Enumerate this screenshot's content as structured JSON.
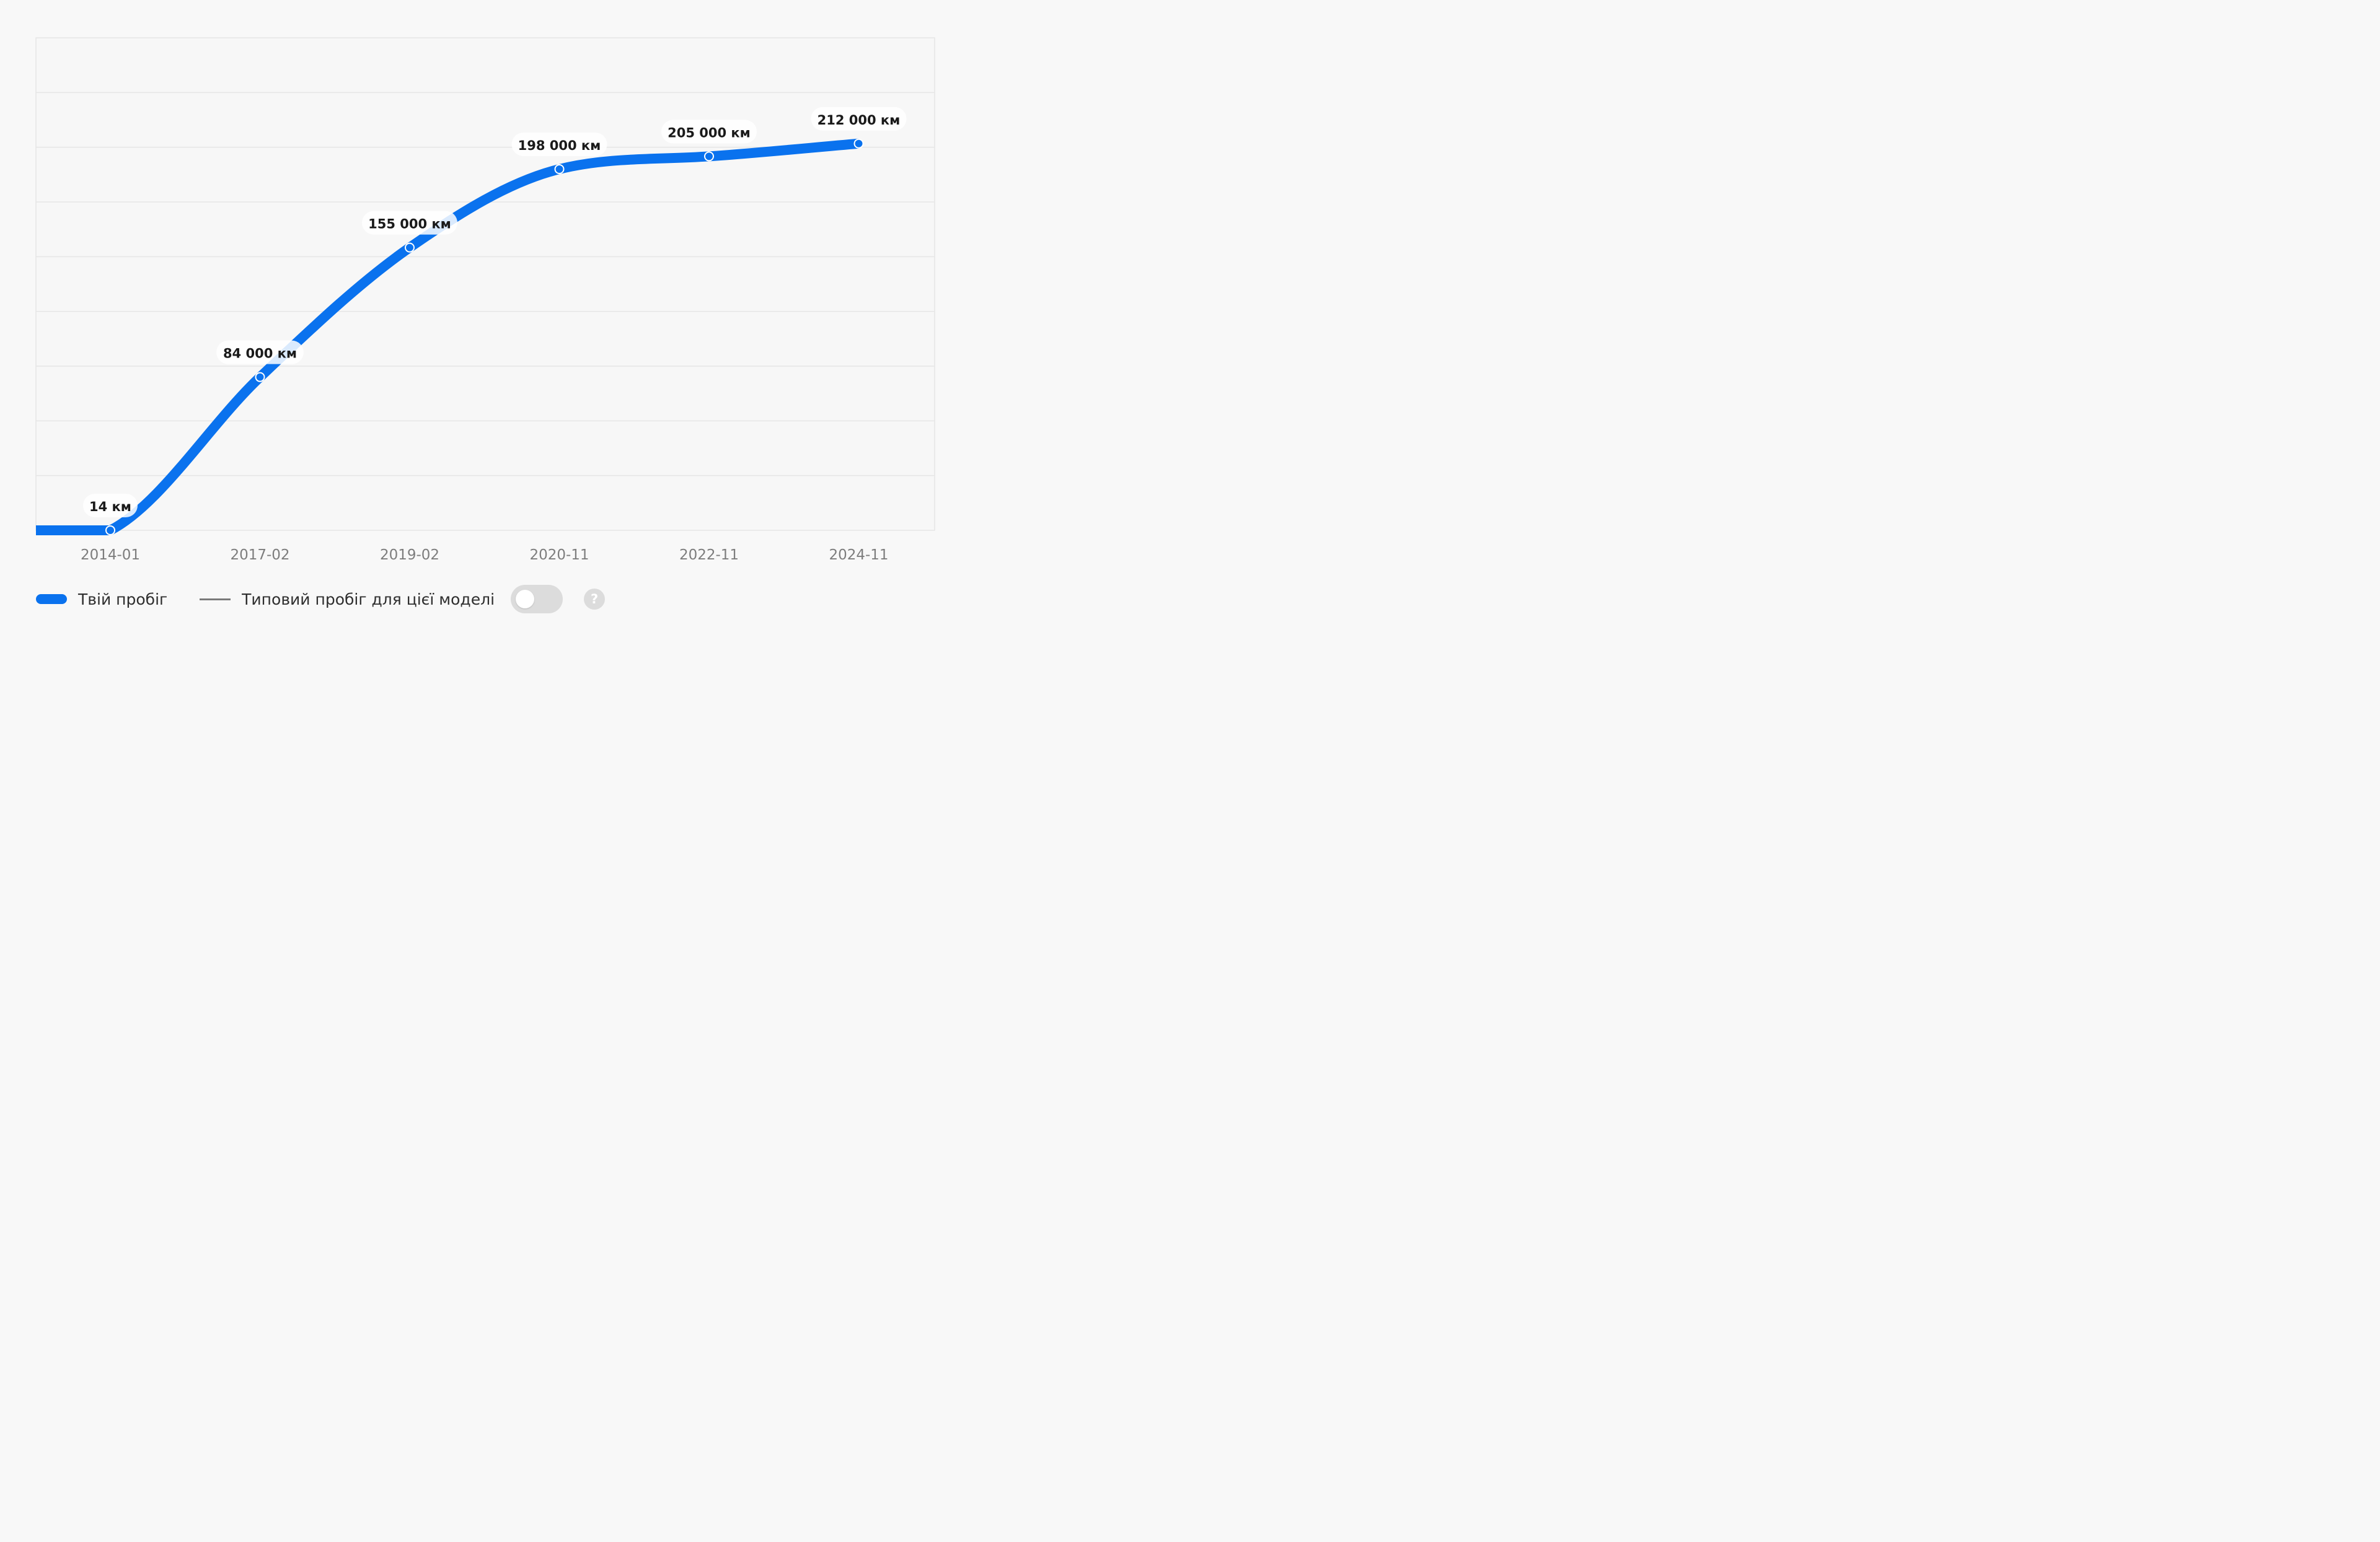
{
  "chart_data": {
    "type": "line",
    "categories": [
      "2014-01",
      "2017-02",
      "2019-02",
      "2020-11",
      "2022-11",
      "2024-11"
    ],
    "series": [
      {
        "name": "Твій пробіг",
        "values": [
          14,
          84000,
          155000,
          198000,
          205000,
          212000
        ],
        "labels": [
          "14 км",
          "84 000 км",
          "155 000 км",
          "198 000 км",
          "205 000 км",
          "212 000 км"
        ],
        "color": "#0a72ee"
      }
    ],
    "ylim": [
      0,
      270000
    ],
    "grid": true,
    "legend_position": "bottom-left"
  },
  "legend": {
    "main_label": "Твій пробіг",
    "typical_label": "Типовий пробіг для цієї моделі",
    "help_glyph": "?",
    "toggle_on": false
  },
  "colors": {
    "series": "#0a72ee",
    "grid": "#e6e6e6",
    "axis_text": "#7d7d7d",
    "background": "#f8f8f8"
  }
}
